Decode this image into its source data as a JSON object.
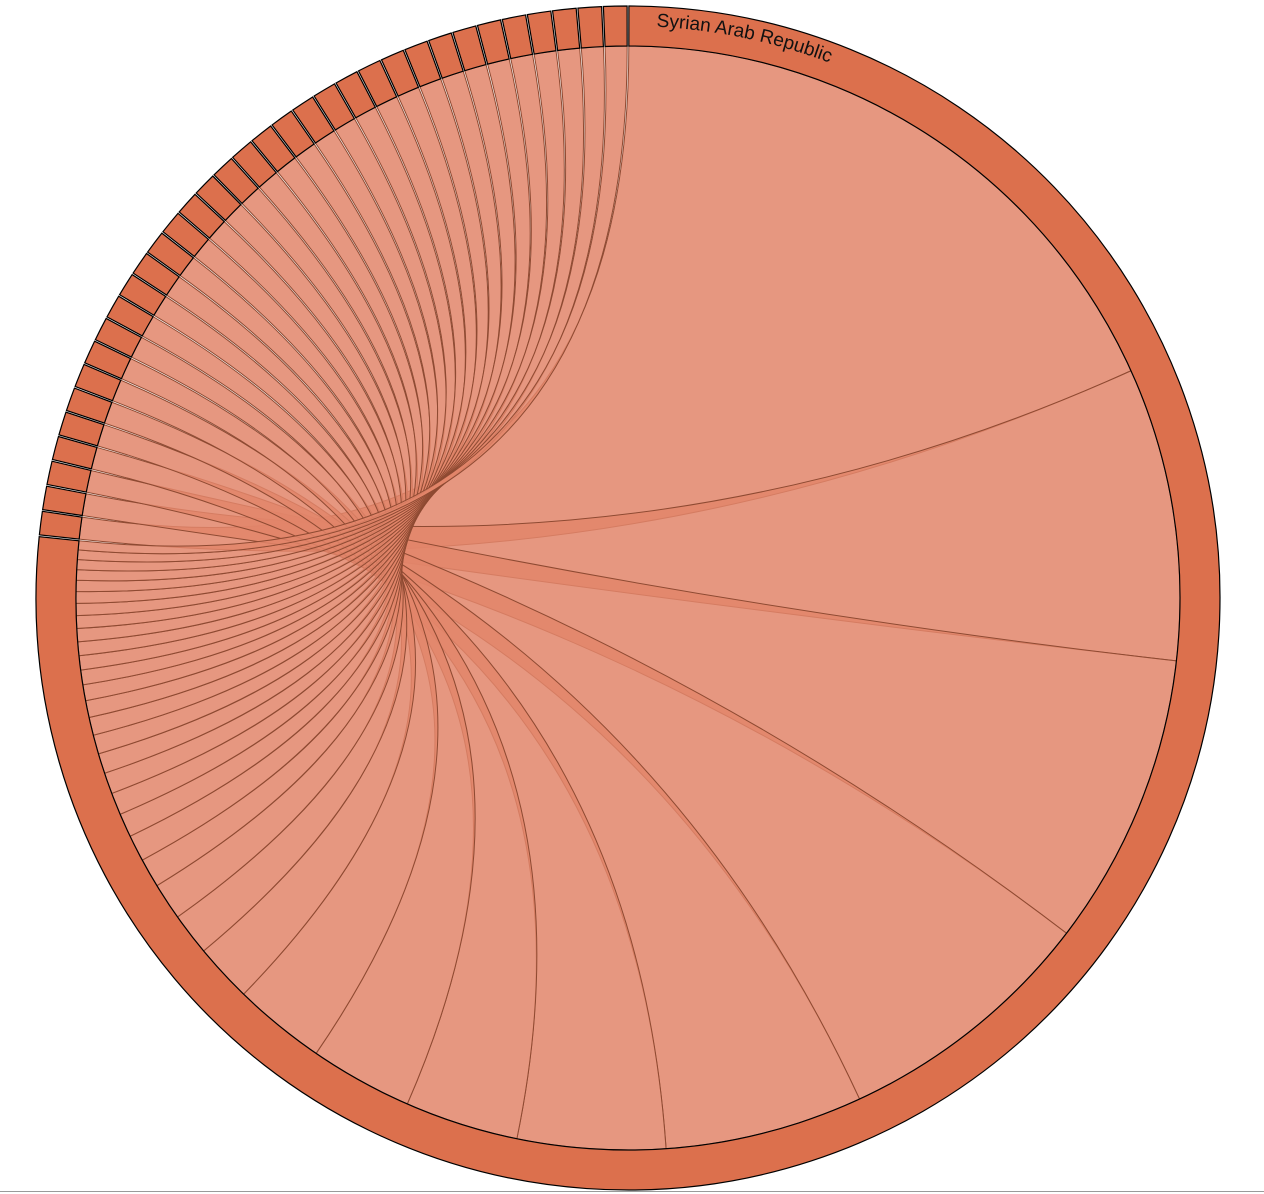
{
  "chart_data": {
    "type": "chord",
    "groups": [
      {
        "name": "Syrian Arab Republic",
        "label": "Syrian Arab Republic",
        "value": 0.503
      },
      {
        "name": "g2",
        "label": "",
        "value": 0.0045
      },
      {
        "name": "g3",
        "label": "",
        "value": 0.0045
      },
      {
        "name": "g4",
        "label": "",
        "value": 0.0045
      },
      {
        "name": "g5",
        "label": "",
        "value": 0.0045
      },
      {
        "name": "g6",
        "label": "",
        "value": 0.0045
      },
      {
        "name": "g7",
        "label": "",
        "value": 0.0045
      },
      {
        "name": "g8",
        "label": "",
        "value": 0.0045
      },
      {
        "name": "g9",
        "label": "",
        "value": 0.0045
      },
      {
        "name": "g10",
        "label": "",
        "value": 0.0045
      },
      {
        "name": "g11",
        "label": "",
        "value": 0.0045
      },
      {
        "name": "g12",
        "label": "",
        "value": 0.0045
      },
      {
        "name": "g13",
        "label": "",
        "value": 0.0045
      },
      {
        "name": "g14",
        "label": "",
        "value": 0.0045
      },
      {
        "name": "g15",
        "label": "",
        "value": 0.0045
      },
      {
        "name": "g16",
        "label": "",
        "value": 0.0045
      },
      {
        "name": "g17",
        "label": "",
        "value": 0.0045
      },
      {
        "name": "g18",
        "label": "",
        "value": 0.0045
      },
      {
        "name": "g19",
        "label": "",
        "value": 0.0045
      },
      {
        "name": "g20",
        "label": "",
        "value": 0.0045
      },
      {
        "name": "g21",
        "label": "",
        "value": 0.0045
      },
      {
        "name": "g22",
        "label": "",
        "value": 0.0045
      },
      {
        "name": "g23",
        "label": "",
        "value": 0.0045
      },
      {
        "name": "g24",
        "label": "",
        "value": 0.0045
      },
      {
        "name": "g25",
        "label": "",
        "value": 0.0045
      },
      {
        "name": "g26",
        "label": "",
        "value": 0.0045
      },
      {
        "name": "g27",
        "label": "",
        "value": 0.0045
      },
      {
        "name": "g28",
        "label": "",
        "value": 0.0045
      },
      {
        "name": "g29",
        "label": "",
        "value": 0.0045
      },
      {
        "name": "g30",
        "label": "",
        "value": 0.0045
      },
      {
        "name": "g31",
        "label": "",
        "value": 0.0045
      },
      {
        "name": "g32",
        "label": "",
        "value": 0.0045
      },
      {
        "name": "g33",
        "label": "",
        "value": 0.0045
      },
      {
        "name": "g34",
        "label": "",
        "value": 0.0045
      },
      {
        "name": "g35",
        "label": "",
        "value": 0.0045
      }
    ],
    "flows_from_group": "Syrian Arab Republic",
    "flows": [
      {
        "target": "g2",
        "value": 0.118
      },
      {
        "target": "g3",
        "value": 0.0555
      },
      {
        "target": "g4",
        "value": 0.0555
      },
      {
        "target": "g5",
        "value": 0.05
      },
      {
        "target": "g6",
        "value": 0.0375
      },
      {
        "target": "g7",
        "value": 0.028
      },
      {
        "target": "g8",
        "value": 0.0215
      },
      {
        "target": "g9",
        "value": 0.0195
      },
      {
        "target": "g10",
        "value": 0.0175
      },
      {
        "target": "g11",
        "value": 0.011
      },
      {
        "target": "g12",
        "value": 0.008
      },
      {
        "target": "g13",
        "value": 0.007
      },
      {
        "target": "g14",
        "value": 0.0055
      },
      {
        "target": "g15",
        "value": 0.005
      },
      {
        "target": "g16",
        "value": 0.0045
      },
      {
        "target": "g17",
        "value": 0.0042
      },
      {
        "target": "g18",
        "value": 0.004
      },
      {
        "target": "g19",
        "value": 0.0038
      },
      {
        "target": "g20",
        "value": 0.0036
      },
      {
        "target": "g21",
        "value": 0.0034
      },
      {
        "target": "g22",
        "value": 0.0032
      },
      {
        "target": "g23",
        "value": 0.003
      },
      {
        "target": "g24",
        "value": 0.0028
      },
      {
        "target": "g25",
        "value": 0.0027
      },
      {
        "target": "g26",
        "value": 0.0026
      },
      {
        "target": "g27",
        "value": 0.0025
      },
      {
        "target": "g28",
        "value": 0.0024
      },
      {
        "target": "g29",
        "value": 0.0023
      },
      {
        "target": "g30",
        "value": 0.0022
      },
      {
        "target": "g31",
        "value": 0.0021
      },
      {
        "target": "g32",
        "value": 0.002
      },
      {
        "target": "g33",
        "value": 0.0019
      },
      {
        "target": "g34",
        "value": 0.0018
      },
      {
        "target": "g35",
        "value": 0.0017
      }
    ],
    "colors": {
      "group_fill": "#dc704d",
      "ribbon_fill": "#e2856a",
      "ribbon_stroke": "#8e4a32",
      "outline": "#000000"
    },
    "legend": "none",
    "grid": false
  }
}
